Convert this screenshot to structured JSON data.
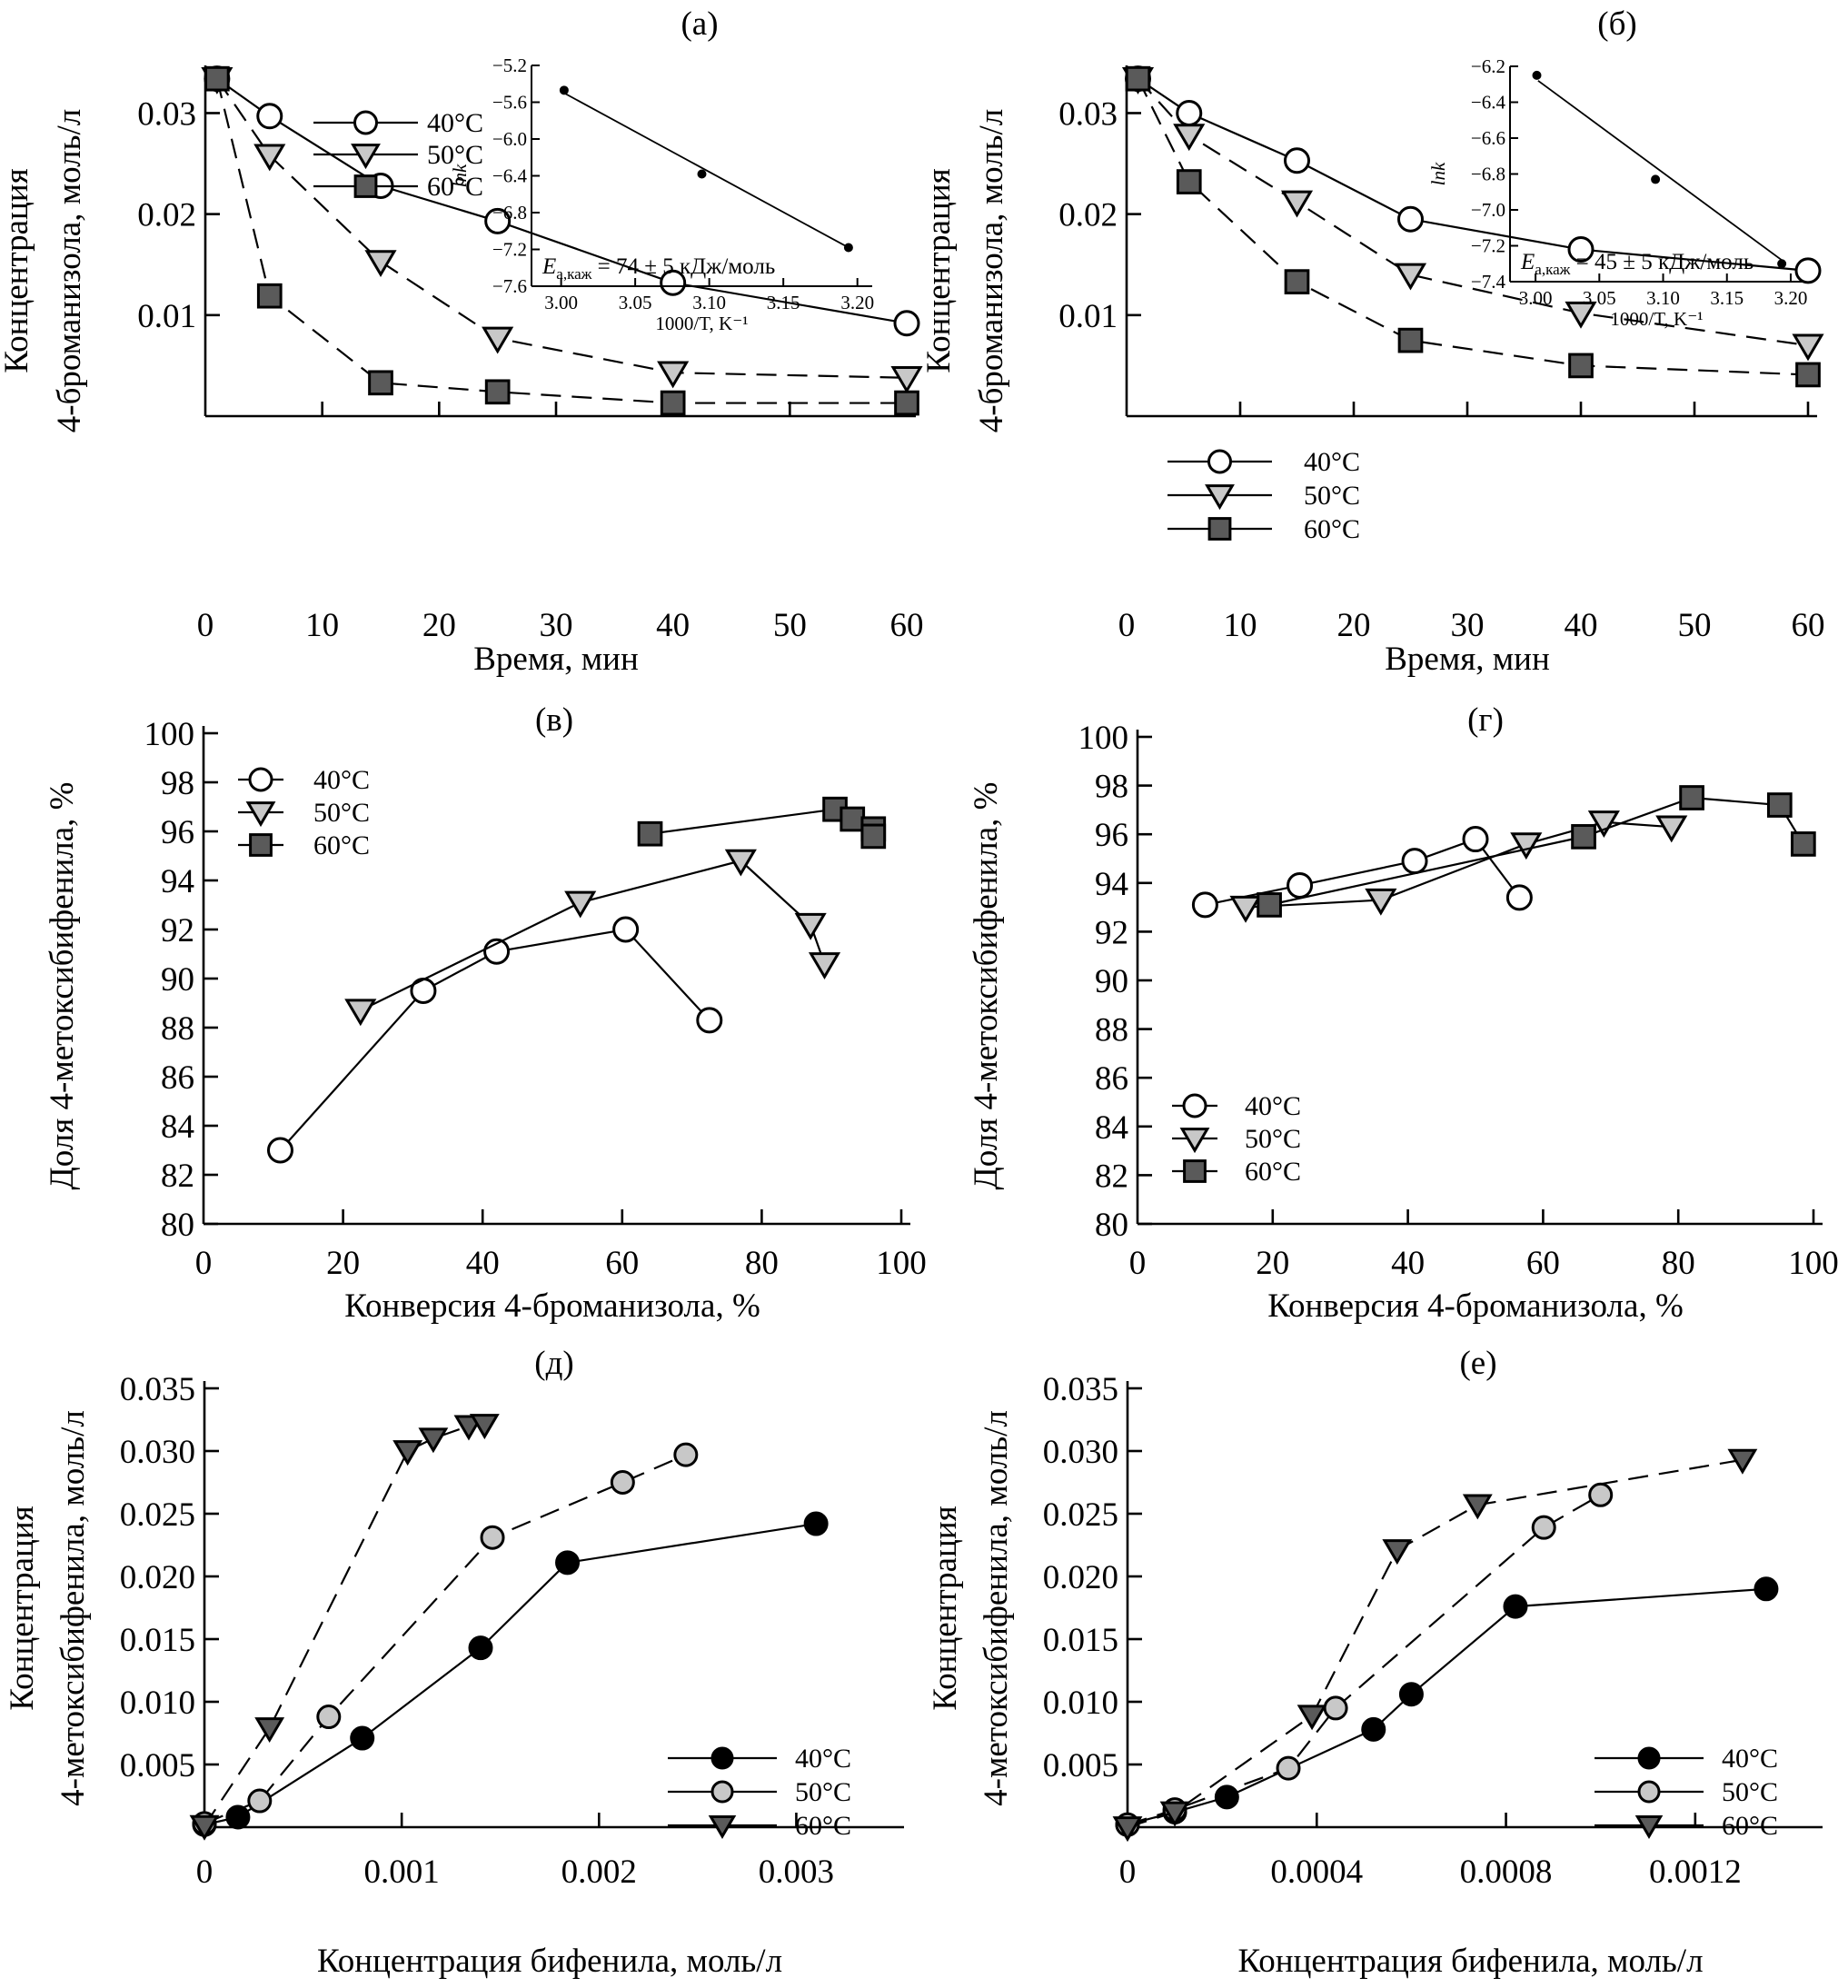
{
  "figure": {
    "marker_colors": {
      "open": "#ffffff",
      "light_gray": "#c8c8c8",
      "dark_gray": "#5a5a5a",
      "black": "#000000"
    }
  },
  "chart_data": [
    {
      "id": "a",
      "panel_label": "(а)",
      "type": "line",
      "xlabel": "Время, мин",
      "ylabel_line1": "Концентрация",
      "ylabel_line2": "4-броманизола, моль/л",
      "xlim": [
        0,
        60
      ],
      "ylim": [
        0,
        0.034
      ],
      "xticks": [
        0,
        10,
        20,
        30,
        40,
        50,
        60
      ],
      "xtick_labels": [
        "0",
        "10",
        "20",
        "30",
        "40",
        "50",
        "60"
      ],
      "yticks": [
        0.01,
        0.02,
        0.03
      ],
      "ytick_labels": [
        "0.01",
        "0.02",
        "0.03"
      ],
      "legend": {
        "position": "top-center",
        "entries": [
          "40°C",
          "50°C",
          "60°C"
        ]
      },
      "series": [
        {
          "name": "40°C",
          "marker": "circle",
          "fill": "open",
          "line": "solid",
          "x": [
            1,
            5.5,
            15,
            25,
            40,
            60
          ],
          "y": [
            0.0334,
            0.0297,
            0.0228,
            0.0193,
            0.0132,
            0.0092
          ]
        },
        {
          "name": "50°C",
          "marker": "triangle-down",
          "fill": "light_gray",
          "line": "dash",
          "x": [
            1,
            5.5,
            15,
            25,
            40,
            60
          ],
          "y": [
            0.0334,
            0.0258,
            0.0153,
            0.0077,
            0.0043,
            0.0038
          ]
        },
        {
          "name": "60°C",
          "marker": "square",
          "fill": "dark_gray",
          "line": "dash",
          "x": [
            1,
            5.5,
            15,
            25,
            40,
            60
          ],
          "y": [
            0.0334,
            0.0119,
            0.0033,
            0.0024,
            0.0013,
            0.0013
          ]
        }
      ],
      "inset": {
        "type": "scatter",
        "xlabel": "1000/T, K⁻¹",
        "ylabel": "lnk",
        "xlim": [
          2.98,
          3.21
        ],
        "ylim": [
          -7.6,
          -5.2
        ],
        "xticks": [
          3.0,
          3.05,
          3.1,
          3.15,
          3.2
        ],
        "xtick_labels": [
          "3.00",
          "3.05",
          "3.10",
          "3.15",
          "3.20"
        ],
        "yticks": [
          -5.2,
          -5.6,
          -6.0,
          -6.4,
          -6.8,
          -7.2,
          -7.6
        ],
        "ytick_labels": [
          "−5.2",
          "−5.6",
          "−6.0",
          "−6.4",
          "−6.8",
          "−7.2",
          "−7.6"
        ],
        "points": {
          "x": [
            3.002,
            3.095,
            3.194
          ],
          "y": [
            -5.47,
            -6.38,
            -7.18
          ]
        },
        "fit_line": {
          "x": [
            3.002,
            3.194
          ],
          "y": [
            -5.5,
            -7.18
          ]
        },
        "annotation_main": "E",
        "annotation_sub": "а,каж",
        "annotation_rest": " = 74 ± 5 кДж/моль"
      }
    },
    {
      "id": "b",
      "panel_label": "(б)",
      "type": "line",
      "xlabel": "Время, мин",
      "ylabel_line1": "Концентрация",
      "ylabel_line2": "4-броманизола, моль/л",
      "xlim": [
        0,
        60
      ],
      "ylim": [
        0,
        0.034
      ],
      "xticks": [
        0,
        10,
        20,
        30,
        40,
        50,
        60
      ],
      "xtick_labels": [
        "0",
        "10",
        "20",
        "30",
        "40",
        "50",
        "60"
      ],
      "yticks": [
        0.01,
        0.02,
        0.03
      ],
      "ytick_labels": [
        "0.01",
        "0.02",
        "0.03"
      ],
      "legend": {
        "position": "bottom-left",
        "entries": [
          "40°C",
          "50°C",
          "60°C"
        ]
      },
      "series": [
        {
          "name": "40°C",
          "marker": "circle",
          "fill": "open",
          "line": "solid",
          "x": [
            1,
            5.5,
            15,
            25,
            40,
            60
          ],
          "y": [
            0.0334,
            0.03,
            0.0253,
            0.0195,
            0.0165,
            0.0144
          ]
        },
        {
          "name": "50°C",
          "marker": "triangle-down",
          "fill": "light_gray",
          "line": "dash",
          "x": [
            1,
            5.5,
            15,
            25,
            40,
            60
          ],
          "y": [
            0.0334,
            0.0278,
            0.0212,
            0.014,
            0.0102,
            0.007
          ]
        },
        {
          "name": "60°C",
          "marker": "square",
          "fill": "dark_gray",
          "line": "dash",
          "x": [
            1,
            5.5,
            15,
            25,
            40,
            60
          ],
          "y": [
            0.0334,
            0.0232,
            0.0133,
            0.0075,
            0.005,
            0.0041
          ]
        }
      ],
      "inset": {
        "type": "scatter",
        "xlabel": "1000/T, K⁻¹",
        "ylabel": "lnk",
        "xlim": [
          2.98,
          3.21
        ],
        "ylim": [
          -7.4,
          -6.2
        ],
        "xticks": [
          3.0,
          3.05,
          3.1,
          3.15,
          3.2
        ],
        "xtick_labels": [
          "3.00",
          "3.05",
          "3.10",
          "3.15",
          "3.20"
        ],
        "yticks": [
          -6.2,
          -6.4,
          -6.6,
          -6.8,
          -7.0,
          -7.2,
          -7.4
        ],
        "ytick_labels": [
          "−6.2",
          "−6.4",
          "−6.6",
          "−6.8",
          "−7.0",
          "−7.2",
          "−7.4"
        ],
        "points": {
          "x": [
            3.001,
            3.094,
            3.193
          ],
          "y": [
            -6.25,
            -6.83,
            -7.3
          ]
        },
        "fit_line": {
          "x": [
            3.002,
            3.193
          ],
          "y": [
            -6.28,
            -7.28
          ]
        },
        "annotation_main": "E",
        "annotation_sub": "а,каж",
        "annotation_rest": " = 45 ± 5 кДж/моль"
      }
    },
    {
      "id": "v",
      "panel_label": "(в)",
      "type": "line",
      "xlabel": "Конверсия 4-броманизола, %",
      "ylabel_line1": "Доля 4-метоксибифенила, %",
      "ylabel_line2": "",
      "xlim": [
        0,
        100
      ],
      "ylim": [
        80,
        100
      ],
      "xticks": [
        0,
        20,
        40,
        60,
        80,
        100
      ],
      "xtick_labels": [
        "0",
        "20",
        "40",
        "60",
        "80",
        "100"
      ],
      "yticks": [
        80,
        82,
        84,
        86,
        88,
        90,
        92,
        94,
        96,
        98,
        100
      ],
      "ytick_labels": [
        "80",
        "82",
        "84",
        "86",
        "88",
        "90",
        "92",
        "94",
        "96",
        "98",
        "100"
      ],
      "legend": {
        "position": "top-left",
        "entries": [
          "40°C",
          "50°C",
          "60°C"
        ]
      },
      "series": [
        {
          "name": "40°C",
          "marker": "circle",
          "fill": "open",
          "line": "solid",
          "x": [
            11,
            31.5,
            42,
            60.5,
            72.5
          ],
          "y": [
            83.0,
            89.5,
            91.1,
            92.0,
            88.3
          ]
        },
        {
          "name": "50°C",
          "marker": "triangle-down",
          "fill": "light_gray",
          "line": "solid",
          "x": [
            22.5,
            54,
            77,
            87,
            89
          ],
          "y": [
            88.7,
            93.1,
            94.8,
            92.2,
            90.6
          ]
        },
        {
          "name": "60°C",
          "marker": "square",
          "fill": "dark_gray",
          "line": "solid",
          "x": [
            64,
            90.5,
            93,
            96,
            96
          ],
          "y": [
            95.9,
            96.9,
            96.5,
            96.1,
            95.8
          ]
        }
      ]
    },
    {
      "id": "g",
      "panel_label": "(г)",
      "type": "line",
      "xlabel": "Конверсия 4-броманизола, %",
      "ylabel_line1": "Доля 4-метоксибифенила, %",
      "ylabel_line2": "",
      "xlim": [
        0,
        100
      ],
      "ylim": [
        80,
        100
      ],
      "xticks": [
        0,
        20,
        40,
        60,
        80,
        100
      ],
      "xtick_labels": [
        "0",
        "20",
        "40",
        "60",
        "80",
        "100"
      ],
      "yticks": [
        80,
        82,
        84,
        86,
        88,
        90,
        92,
        94,
        96,
        98,
        100
      ],
      "ytick_labels": [
        "80",
        "82",
        "84",
        "86",
        "88",
        "90",
        "92",
        "94",
        "96",
        "98",
        "100"
      ],
      "legend": {
        "position": "bottom-left",
        "entries": [
          "40°C",
          "50°C",
          "60°C"
        ]
      },
      "series": [
        {
          "name": "40°C",
          "marker": "circle",
          "fill": "open",
          "line": "solid",
          "x": [
            10,
            24,
            41,
            50,
            56.5
          ],
          "y": [
            93.1,
            93.9,
            94.9,
            95.8,
            93.4
          ]
        },
        {
          "name": "50°C",
          "marker": "triangle-down",
          "fill": "light_gray",
          "line": "solid",
          "x": [
            16,
            36,
            57.5,
            69,
            79
          ],
          "y": [
            93.0,
            93.3,
            95.6,
            96.5,
            96.3
          ]
        },
        {
          "name": "60°C",
          "marker": "square",
          "fill": "dark_gray",
          "line": "solid",
          "x": [
            19.5,
            66,
            82,
            95,
            98.5
          ],
          "y": [
            93.1,
            95.9,
            97.5,
            97.2,
            95.6
          ]
        }
      ]
    },
    {
      "id": "d",
      "panel_label": "(д)",
      "type": "line",
      "xlabel": "Концентрация бифенила, моль/л",
      "ylabel_line1": "Концентрация",
      "ylabel_line2": "4-метоксибифенила, моль/л",
      "xlim": [
        0,
        0.0035
      ],
      "ylim": [
        0,
        0.035
      ],
      "xticks": [
        0,
        0.001,
        0.002,
        0.003
      ],
      "xtick_labels": [
        "0",
        "0.001",
        "0.002",
        "0.003"
      ],
      "yticks": [
        0.005,
        0.01,
        0.015,
        0.02,
        0.025,
        0.03,
        0.035
      ],
      "ytick_labels": [
        "0.005",
        "0.010",
        "0.015",
        "0.020",
        "0.025",
        "0.030",
        "0.035"
      ],
      "legend": {
        "position": "bottom-right",
        "entries": [
          "40°C",
          "50°C",
          "60°C"
        ]
      },
      "series": [
        {
          "name": "40°C",
          "marker": "circle",
          "fill": "black",
          "line": "solid",
          "x": [
            0.0,
            0.00017,
            0.0008,
            0.0014,
            0.00184,
            0.0031
          ],
          "y": [
            0.0002,
            0.0008,
            0.0071,
            0.0143,
            0.0211,
            0.0242
          ]
        },
        {
          "name": "50°C",
          "marker": "circle",
          "fill": "light_gray",
          "line": "dash",
          "x": [
            0.0,
            0.00028,
            0.00063,
            0.00146,
            0.00212,
            0.00244
          ],
          "y": [
            0.0003,
            0.0021,
            0.0088,
            0.0231,
            0.0275,
            0.0297
          ]
        },
        {
          "name": "60°C",
          "marker": "triangle-down",
          "fill": "dark_gray",
          "line": "dash",
          "x": [
            0.0,
            0.00033,
            0.00103,
            0.00116,
            0.00134,
            0.00142
          ],
          "y": [
            0.0001,
            0.0079,
            0.03,
            0.031,
            0.032,
            0.0321
          ]
        }
      ]
    },
    {
      "id": "e",
      "panel_label": "(е)",
      "type": "line",
      "xlabel": "Концентрация бифенила, моль/л",
      "ylabel_line1": "Концентрация",
      "ylabel_line2": "4-метоксибифенила, моль/л",
      "xlim": [
        0,
        0.00145
      ],
      "ylim": [
        0,
        0.035
      ],
      "xticks": [
        0,
        0.0004,
        0.0008,
        0.0012
      ],
      "xtick_labels": [
        "0",
        "0.0004",
        "0.0008",
        "0.0012"
      ],
      "yticks": [
        0.005,
        0.01,
        0.015,
        0.02,
        0.025,
        0.03,
        0.035
      ],
      "ytick_labels": [
        "0.005",
        "0.010",
        "0.015",
        "0.020",
        "0.025",
        "0.030",
        "0.035"
      ],
      "legend": {
        "position": "bottom-right",
        "entries": [
          "40°C",
          "50°C",
          "60°C"
        ]
      },
      "series": [
        {
          "name": "40°C",
          "marker": "circle",
          "fill": "black",
          "line": "solid",
          "x": [
            0.0,
            0.0001,
            0.00021,
            0.00052,
            0.0006,
            0.00082,
            0.00135
          ],
          "y": [
            0.0002,
            0.0012,
            0.0024,
            0.0078,
            0.0106,
            0.0176,
            0.019
          ]
        },
        {
          "name": "50°C",
          "marker": "circle",
          "fill": "light_gray",
          "line": "dash",
          "x": [
            0.0,
            0.0001,
            0.00034,
            0.00044,
            0.00088,
            0.001
          ],
          "y": [
            0.0002,
            0.0014,
            0.0047,
            0.0095,
            0.0239,
            0.0265
          ]
        },
        {
          "name": "60°C",
          "marker": "triangle-down",
          "fill": "dark_gray",
          "line": "dash",
          "x": [
            0.0,
            0.0001,
            0.00039,
            0.00057,
            0.00074,
            0.0013
          ],
          "y": [
            0.0,
            0.0012,
            0.0089,
            0.0221,
            0.0257,
            0.0293
          ]
        }
      ]
    }
  ]
}
